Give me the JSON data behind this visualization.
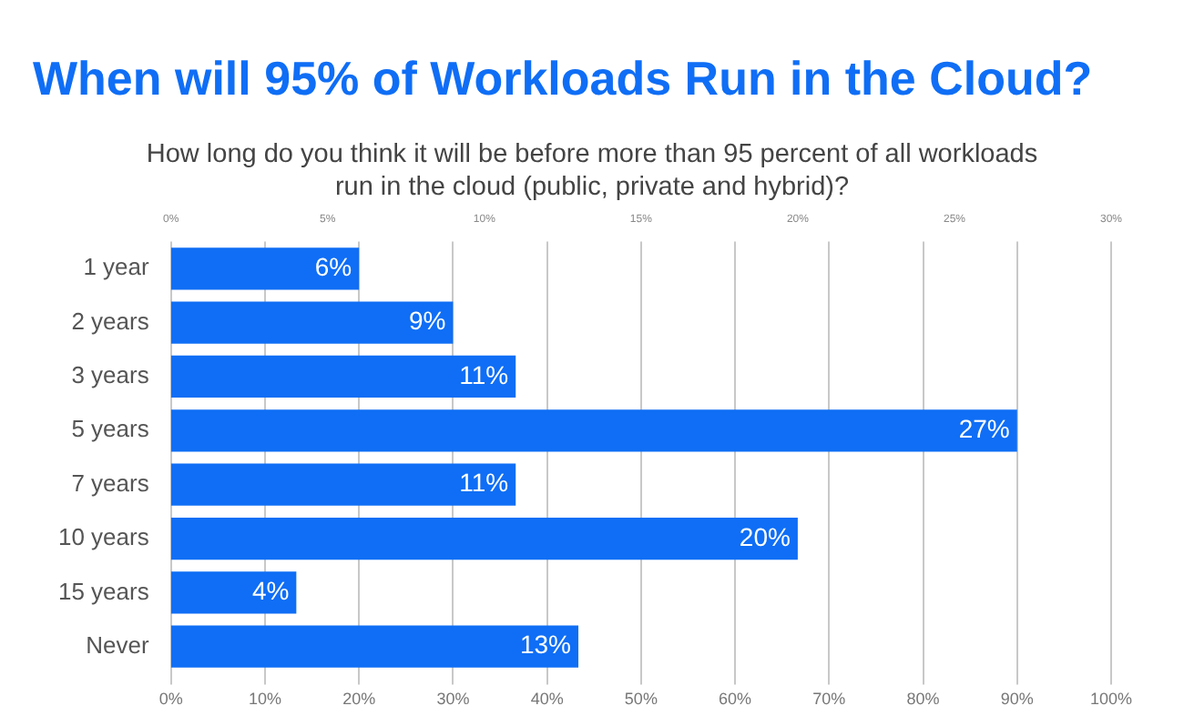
{
  "chart_data": {
    "type": "bar",
    "orientation": "horizontal",
    "title": "When will 95% of Workloads Run in the Cloud?",
    "subtitle": "How long do you think it will be before more than 95 percent of all workloads run in the cloud (public, private and hybrid)?",
    "categories": [
      "1 year",
      "2 years",
      "3 years",
      "5 years",
      "7 years",
      "10 years",
      "15 years",
      "Never"
    ],
    "series": [
      {
        "color": "#0f6ef5",
        "axis": "x2",
        "values": [
          6,
          9,
          11,
          27,
          11,
          20,
          4,
          13
        ],
        "value_labels": [
          "6%",
          "9%",
          "11%",
          "27%",
          "11%",
          "20%",
          "4%",
          "13%"
        ]
      }
    ],
    "xlim": [
      0,
      100
    ],
    "xticks": [
      {
        "value": 0,
        "label": "0%"
      },
      {
        "value": 10,
        "label": "10%"
      },
      {
        "value": 20,
        "label": "20%"
      },
      {
        "value": 30,
        "label": "30%"
      },
      {
        "value": 40,
        "label": "40%"
      },
      {
        "value": 50,
        "label": "50%"
      },
      {
        "value": 60,
        "label": "60%"
      },
      {
        "value": 70,
        "label": "70%"
      },
      {
        "value": 80,
        "label": "80%"
      },
      {
        "value": 90,
        "label": "90%"
      },
      {
        "value": 100,
        "label": "100%"
      }
    ],
    "x2lim": [
      0,
      30
    ],
    "x2ticks": [
      {
        "value": 0,
        "label": "0%"
      },
      {
        "value": 5,
        "label": "5%"
      },
      {
        "value": 10,
        "label": "10%"
      },
      {
        "value": 15,
        "label": "15%"
      },
      {
        "value": 20,
        "label": "20%"
      },
      {
        "value": 25,
        "label": "25%"
      },
      {
        "value": 30,
        "label": "30%"
      }
    ],
    "grid": "x",
    "legend": false
  }
}
